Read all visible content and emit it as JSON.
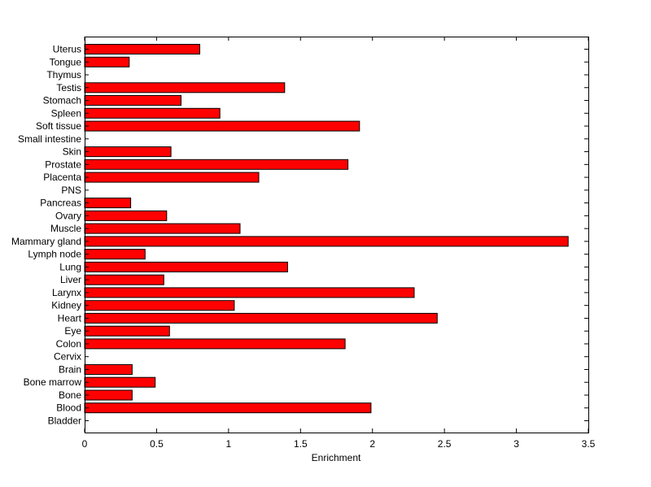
{
  "chart_data": {
    "type": "bar",
    "orientation": "horizontal",
    "xlabel": "Enrichment",
    "xlim": [
      0,
      3.5
    ],
    "xticks": [
      0,
      0.5,
      1,
      1.5,
      2,
      2.5,
      3,
      3.5
    ],
    "xtick_labels": [
      "0",
      "0.5",
      "1",
      "1.5",
      "2",
      "2.5",
      "3",
      "3.5"
    ],
    "grid": false,
    "bar_color": "#ff0000",
    "categories": [
      "Bladder",
      "Blood",
      "Bone",
      "Bone marrow",
      "Brain",
      "Cervix",
      "Colon",
      "Eye",
      "Heart",
      "Kidney",
      "Larynx",
      "Liver",
      "Lung",
      "Lymph node",
      "Mammary gland",
      "Muscle",
      "Ovary",
      "Pancreas",
      "PNS",
      "Placenta",
      "Prostate",
      "Skin",
      "Small intestine",
      "Soft tissue",
      "Spleen",
      "Stomach",
      "Testis",
      "Thymus",
      "Tongue",
      "Uterus"
    ],
    "values": [
      0,
      1.99,
      0.33,
      0.49,
      0.33,
      0,
      1.81,
      0.59,
      2.45,
      1.04,
      2.29,
      0.55,
      1.41,
      0.42,
      3.36,
      1.08,
      0.57,
      0.32,
      0,
      1.21,
      1.83,
      0.6,
      0,
      1.91,
      0.94,
      0.67,
      1.39,
      0,
      0.31,
      0.8
    ]
  }
}
